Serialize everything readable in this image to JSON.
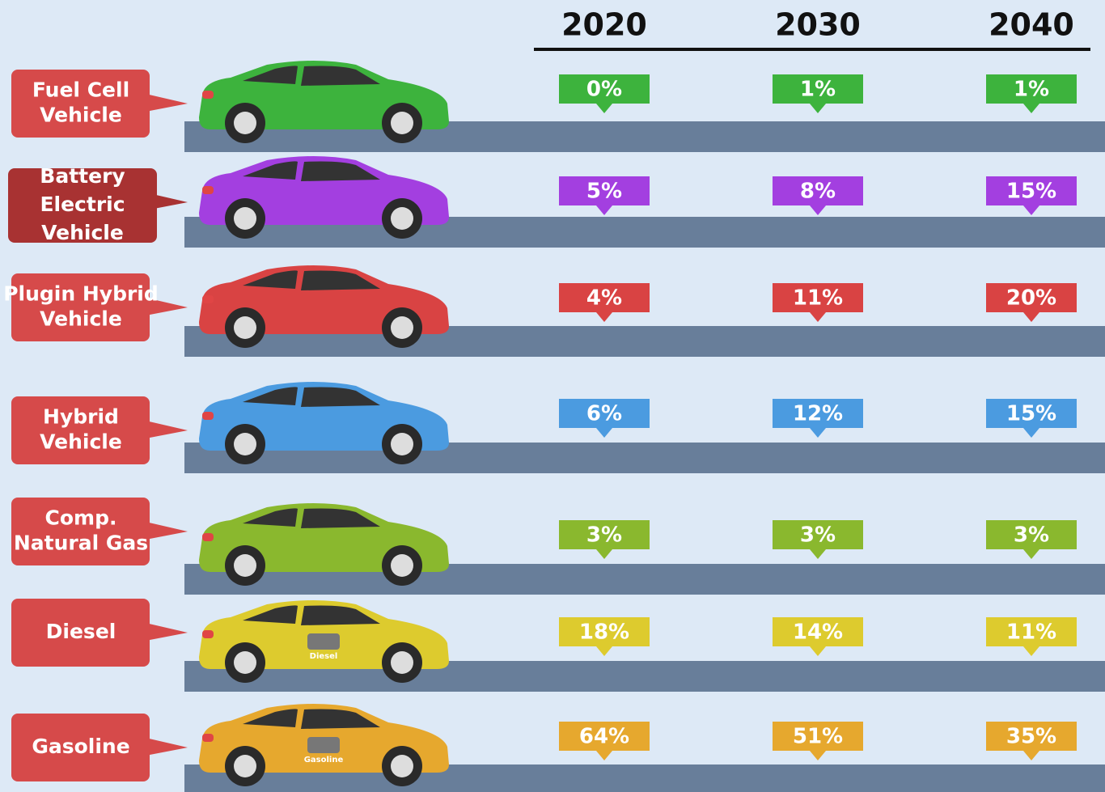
{
  "header": {
    "years": [
      "2020",
      "2030",
      "2040"
    ]
  },
  "rows": [
    {
      "label": [
        "Fuel Cell",
        "Vehicle"
      ],
      "color": "#3db33d",
      "cells": [
        "0%",
        "1%",
        "1%"
      ]
    },
    {
      "label": [
        "Battery",
        "Electric",
        "Vehicle"
      ],
      "color": "#a33fe0",
      "cells": [
        "5%",
        "8%",
        "15%"
      ]
    },
    {
      "label": [
        "Plugin Hybrid",
        "Vehicle"
      ],
      "color": "#d94343",
      "cells": [
        "4%",
        "11%",
        "20%"
      ]
    },
    {
      "label": [
        "Hybrid",
        "Vehicle"
      ],
      "color": "#4b9be0",
      "cells": [
        "6%",
        "12%",
        "15%"
      ]
    },
    {
      "label": [
        "Comp.",
        "Natural Gas"
      ],
      "color": "#8ab82e",
      "cells": [
        "3%",
        "3%",
        "3%"
      ]
    },
    {
      "label": [
        "Diesel"
      ],
      "color": "#ddcb2e",
      "cells": [
        "18%",
        "14%",
        "11%"
      ],
      "engine_label": "Diesel"
    },
    {
      "label": [
        "Gasoline"
      ],
      "color": "#e6a82e",
      "cells": [
        "64%",
        "51%",
        "35%"
      ],
      "engine_label": "Gasoline"
    }
  ]
}
